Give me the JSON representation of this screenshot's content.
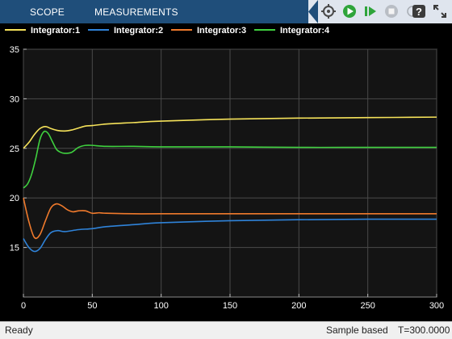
{
  "toolbar": {
    "tabs": [
      {
        "label": "SCOPE"
      },
      {
        "label": "MEASUREMENTS"
      }
    ],
    "buttons": [
      "settings-icon",
      "run-icon",
      "step-forward-icon",
      "stop-icon",
      "help-icon",
      "expand-icon"
    ]
  },
  "colors": {
    "axes_bg": "#141414",
    "grid": "#4a4a4a",
    "tick_text": "#ffffff",
    "series": [
      "#f6e35a",
      "#2f83d9",
      "#f07a2c",
      "#3fd13f"
    ]
  },
  "chart_data": {
    "type": "line",
    "title": "",
    "xlabel": "",
    "ylabel": "",
    "xlim": [
      0,
      300
    ],
    "ylim": [
      10,
      35
    ],
    "xticks": [
      0,
      50,
      100,
      150,
      200,
      250,
      300
    ],
    "yticks": [
      15,
      20,
      25,
      30,
      35
    ],
    "grid": true,
    "legend": "top",
    "series": [
      {
        "name": "Integrator:1",
        "x": [
          0,
          4,
          8,
          12,
          16,
          20,
          25,
          30,
          35,
          40,
          45,
          50,
          60,
          80,
          100,
          150,
          200,
          250,
          300
        ],
        "y": [
          25.0,
          25.6,
          26.4,
          27.0,
          27.2,
          27.0,
          26.8,
          26.75,
          26.85,
          27.05,
          27.25,
          27.3,
          27.45,
          27.6,
          27.75,
          27.95,
          28.05,
          28.1,
          28.15
        ]
      },
      {
        "name": "Integrator:2",
        "x": [
          0,
          4,
          8,
          12,
          16,
          20,
          25,
          30,
          40,
          50,
          60,
          80,
          100,
          150,
          200,
          250,
          300
        ],
        "y": [
          15.9,
          15.0,
          14.6,
          14.9,
          15.8,
          16.5,
          16.7,
          16.6,
          16.8,
          16.9,
          17.1,
          17.3,
          17.5,
          17.7,
          17.8,
          17.85,
          17.85
        ]
      },
      {
        "name": "Integrator:3",
        "x": [
          0,
          4,
          8,
          12,
          16,
          20,
          24,
          28,
          32,
          36,
          40,
          45,
          50,
          55,
          60,
          80,
          100,
          150,
          200,
          250,
          300
        ],
        "y": [
          20.0,
          17.6,
          16.0,
          16.3,
          17.7,
          19.0,
          19.4,
          19.2,
          18.8,
          18.6,
          18.7,
          18.7,
          18.45,
          18.5,
          18.45,
          18.4,
          18.4,
          18.4,
          18.4,
          18.4,
          18.4
        ]
      },
      {
        "name": "Integrator:4",
        "x": [
          0,
          3,
          6,
          9,
          12,
          15,
          18,
          21,
          24,
          27,
          30,
          35,
          40,
          45,
          50,
          60,
          80,
          100,
          150,
          200,
          250,
          300
        ],
        "y": [
          21.0,
          21.4,
          22.4,
          24.0,
          25.9,
          26.7,
          26.5,
          25.7,
          24.9,
          24.6,
          24.5,
          24.6,
          25.1,
          25.3,
          25.3,
          25.2,
          25.2,
          25.15,
          25.15,
          25.1,
          25.1,
          25.1
        ]
      }
    ]
  },
  "status": {
    "left": "Ready",
    "mode": "Sample based",
    "time": "T=300.0000"
  }
}
